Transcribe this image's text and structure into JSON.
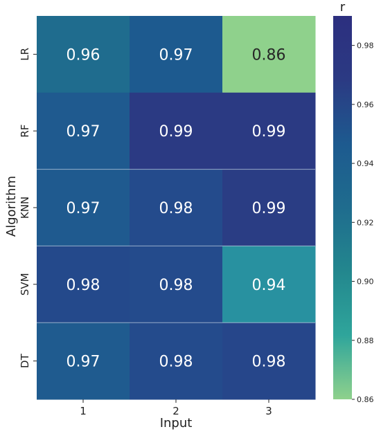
{
  "chart_data": {
    "type": "heatmap",
    "title": "",
    "xlabel": "Input",
    "ylabel": "Algorithm",
    "x_categories": [
      "1",
      "2",
      "3"
    ],
    "y_categories": [
      "LR",
      "RF",
      "KNN",
      "SVM",
      "DT"
    ],
    "values": [
      [
        0.96,
        0.97,
        0.86
      ],
      [
        0.97,
        0.99,
        0.99
      ],
      [
        0.97,
        0.98,
        0.99
      ],
      [
        0.98,
        0.98,
        0.94
      ],
      [
        0.97,
        0.98,
        0.98
      ]
    ],
    "cell_colors": [
      [
        "#1f6c8e",
        "#1d5a8f",
        "#8fd18c"
      ],
      [
        "#1f5a8f",
        "#2b3a83",
        "#2b3a83"
      ],
      [
        "#1f5a8f",
        "#244b8c",
        "#2a3d84"
      ],
      [
        "#24498b",
        "#244b8c",
        "#2891a0"
      ],
      [
        "#1f5b8f",
        "#244b8c",
        "#26468a"
      ]
    ],
    "annotation_colors": {
      "dark_text": "#262626",
      "light_text": "#ffffff"
    },
    "colorbar": {
      "label": "r",
      "range": [
        0.86,
        0.99
      ],
      "ticks": [
        "0.86",
        "0.88",
        "0.90",
        "0.92",
        "0.94",
        "0.96",
        "0.98"
      ],
      "colormap": [
        "#8fd18c",
        "#2fa59b",
        "#23878e",
        "#1f6c8e",
        "#1d5a8f",
        "#2b3a83",
        "#2c2f7f"
      ]
    }
  }
}
